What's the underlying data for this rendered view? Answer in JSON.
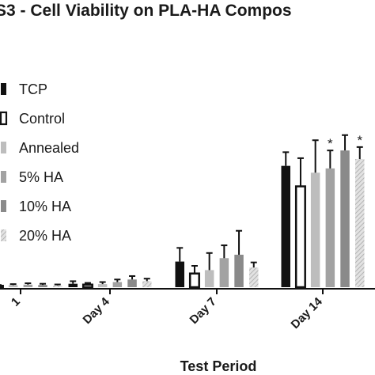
{
  "chart_data": {
    "type": "bar",
    "title": "S3 - Cell Viability on PLA-HA Compos",
    "xlabel": "Test  Period",
    "ylabel": "",
    "ylim": [
      0,
      100
    ],
    "categories": [
      "1",
      "Day 4",
      "Day 7",
      "Day 14"
    ],
    "series": [
      {
        "name": "TCP",
        "values": [
          1.0,
          2.0,
          15.0,
          71.0
        ],
        "errors": [
          0.5,
          1.5,
          8.0,
          8.0
        ],
        "color": "#111111",
        "style": "solid"
      },
      {
        "name": "Control",
        "values": [
          0.8,
          1.5,
          8.0,
          59.0
        ],
        "errors": [
          0.5,
          1.0,
          4.5,
          16.5
        ],
        "color": "#111111",
        "style": "hollow"
      },
      {
        "name": "Annealed",
        "values": [
          1.2,
          1.8,
          10.0,
          67.0
        ],
        "errors": [
          0.6,
          1.2,
          10.0,
          19.0
        ],
        "color": "#bdbdbd",
        "style": "solid"
      },
      {
        "name": "5% HA",
        "values": [
          1.5,
          3.0,
          17.0,
          69.5
        ],
        "errors": [
          0.8,
          1.5,
          7.5,
          10.5
        ],
        "color": "#a2a2a2",
        "style": "solid"
      },
      {
        "name": "10% HA",
        "values": [
          1.3,
          4.5,
          19.0,
          80.0
        ],
        "errors": [
          0.7,
          2.0,
          14.0,
          9.0
        ],
        "color": "#8a8a8a",
        "style": "solid"
      },
      {
        "name": "20% HA",
        "values": [
          1.0,
          3.5,
          11.5,
          75.0
        ],
        "errors": [
          0.6,
          1.5,
          3.0,
          7.0
        ],
        "color": "#d4d4d4",
        "style": "hatched"
      }
    ],
    "annotations": [
      {
        "text": "*",
        "category": "Day 14",
        "series": "5% HA"
      },
      {
        "text": "*",
        "category": "Day 14",
        "series": "20% HA"
      }
    ],
    "legend_placement": "upper-left",
    "grid": false
  }
}
